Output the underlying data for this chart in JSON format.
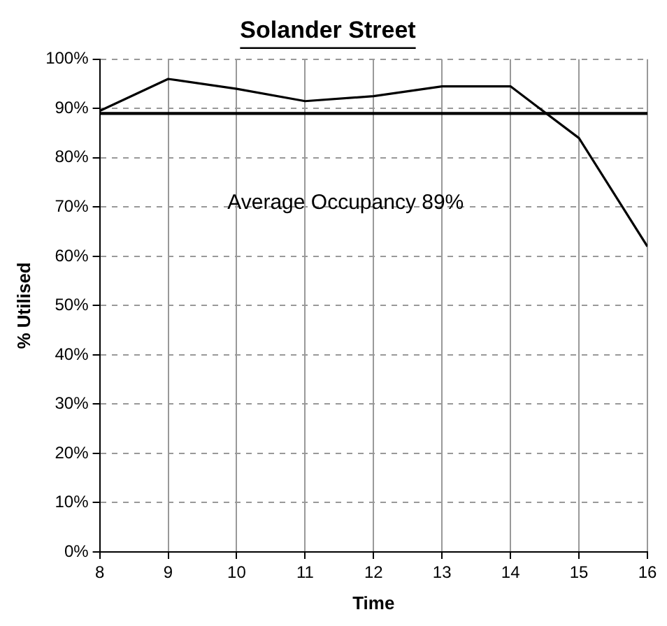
{
  "chart_data": {
    "type": "line",
    "title": "Solander Street",
    "xlabel": "Time",
    "ylabel": "% Utilised",
    "x": [
      8,
      9,
      10,
      11,
      12,
      13,
      14,
      15,
      16
    ],
    "series": [
      {
        "color": "#000000",
        "values": [
          89.5,
          96,
          94,
          91.5,
          92.5,
          94.5,
          94.5,
          84,
          62
        ]
      }
    ],
    "xlim": [
      8,
      16
    ],
    "xticks": [
      8,
      9,
      10,
      11,
      12,
      13,
      14,
      15,
      16
    ],
    "ylim": [
      0,
      100
    ],
    "yticks": [
      {
        "value": 0,
        "label": "0%"
      },
      {
        "value": 10,
        "label": "10%"
      },
      {
        "value": 20,
        "label": "20%"
      },
      {
        "value": 30,
        "label": "30%"
      },
      {
        "value": 40,
        "label": "40%"
      },
      {
        "value": 50,
        "label": "50%"
      },
      {
        "value": 60,
        "label": "60%"
      },
      {
        "value": 70,
        "label": "70%"
      },
      {
        "value": 80,
        "label": "80%"
      },
      {
        "value": 90,
        "label": "90%"
      },
      {
        "value": 100,
        "label": "100%"
      }
    ],
    "ref_lines": [
      {
        "axis": "y",
        "value": 89,
        "label": "Average Occupancy 89%",
        "color": "#000000"
      }
    ],
    "grid": true,
    "legend": false,
    "marker": "none",
    "line_style": "solid"
  }
}
